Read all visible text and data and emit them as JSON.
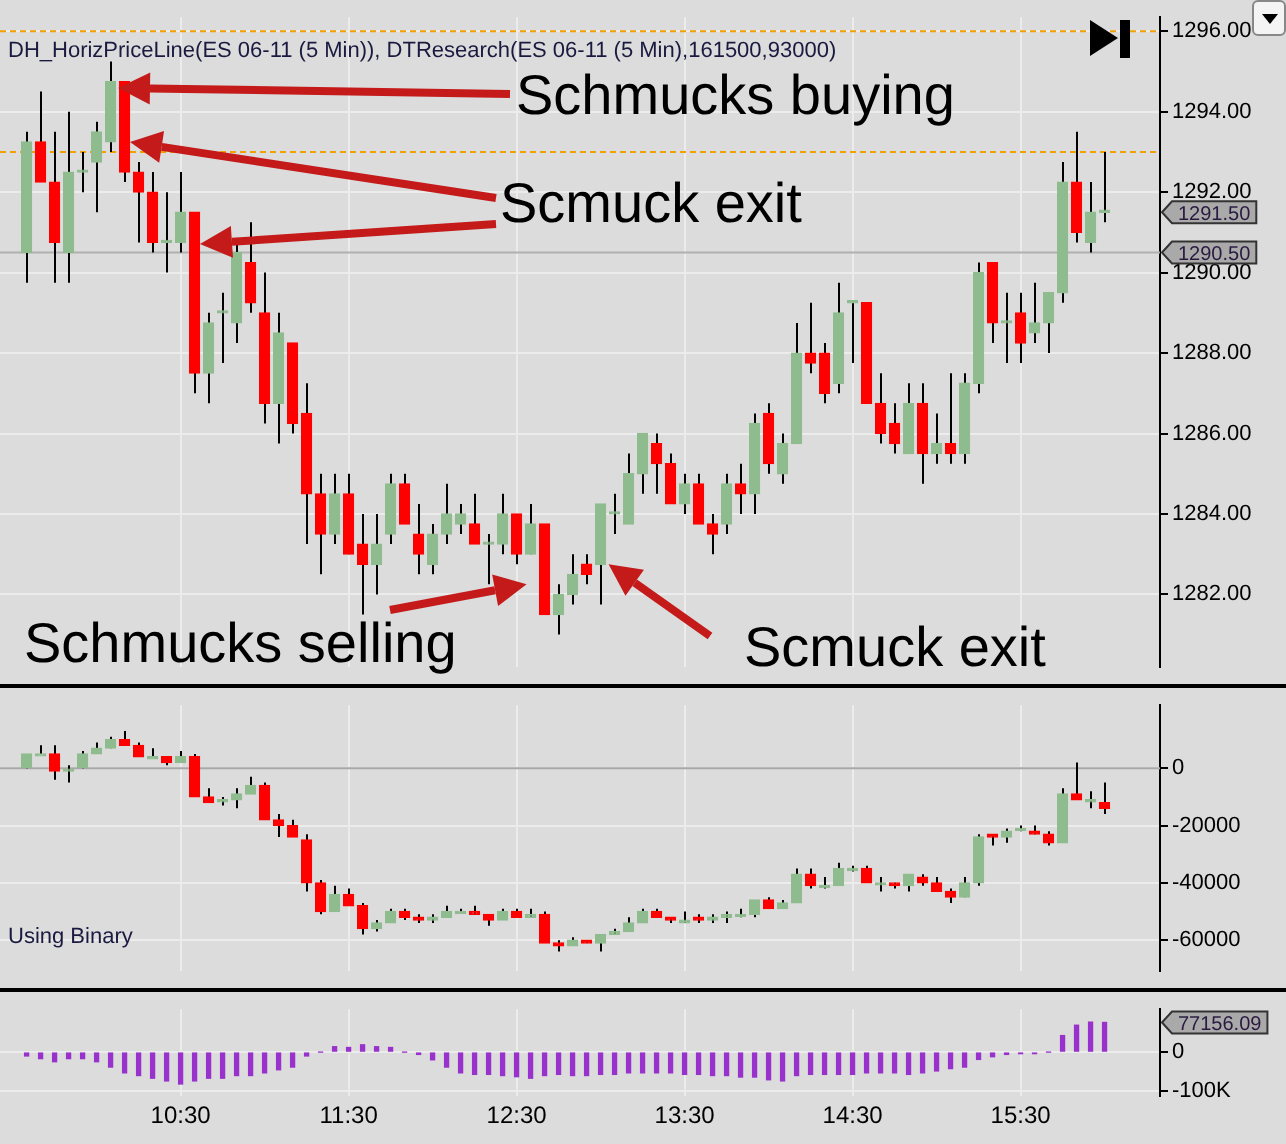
{
  "chart_data": [
    {
      "type": "candlestick",
      "title": "DH_HorizPriceLine(ES 06-11 (5 Min)), DTResearch(ES 06-11 (5 Min),161500,93000)",
      "x": [
        9.5833,
        9.6667,
        9.75,
        9.8333,
        9.9167,
        10,
        10.0833,
        10.1667,
        10.25,
        10.3333,
        10.4167,
        10.5,
        10.5833,
        10.6667,
        10.75,
        10.8333,
        10.9167,
        11,
        11.0833,
        11.1667,
        11.25,
        11.3333,
        11.4167,
        11.5,
        11.5833,
        11.6667,
        11.75,
        11.8333,
        11.9167,
        12,
        12.0833,
        12.1667,
        12.25,
        12.3333,
        12.4167,
        12.5,
        12.5833,
        12.6667,
        12.75,
        12.8333,
        12.9167,
        13,
        13.0833,
        13.1667,
        13.25,
        13.3333,
        13.4167,
        13.5,
        13.5833,
        13.6667,
        13.75,
        13.8333,
        13.9167,
        14,
        14.0833,
        14.1667,
        14.25,
        14.3333,
        14.4167,
        14.5,
        14.5833,
        14.6667,
        14.75,
        14.8333,
        14.9167,
        15,
        15.0833,
        15.1667,
        15.25,
        15.3333,
        15.4167,
        15.5,
        15.5833,
        15.6667,
        15.75,
        15.8333,
        15.9167,
        16
      ],
      "ohlc": [
        [
          1290.5,
          1293.5,
          1289.75,
          1293.25
        ],
        [
          1293.25,
          1294.5,
          1292.25,
          1292.25
        ],
        [
          1292.25,
          1293.5,
          1289.75,
          1290.75
        ],
        [
          1290.5,
          1294,
          1289.75,
          1292.5
        ],
        [
          1292.5,
          1293,
          1292,
          1292.5
        ],
        [
          1292.75,
          1293.75,
          1291.5,
          1293.5
        ],
        [
          1293.25,
          1295.25,
          1293,
          1294.75
        ],
        [
          1294.75,
          1294.75,
          1292.25,
          1292.5
        ],
        [
          1292.5,
          1292.75,
          1290.75,
          1292
        ],
        [
          1292,
          1292.5,
          1290.5,
          1290.75
        ],
        [
          1290.75,
          1292,
          1290,
          1290.75
        ],
        [
          1290.75,
          1292.5,
          1290.5,
          1291.5
        ],
        [
          1291.5,
          1291.5,
          1287,
          1287.5
        ],
        [
          1287.5,
          1289,
          1286.75,
          1288.75
        ],
        [
          1289,
          1289.5,
          1287.75,
          1289
        ],
        [
          1288.75,
          1290.75,
          1288.25,
          1290.5
        ],
        [
          1290.25,
          1291.25,
          1289,
          1289.25
        ],
        [
          1289,
          1290,
          1286.25,
          1286.75
        ],
        [
          1286.75,
          1289,
          1285.75,
          1288.5
        ],
        [
          1288.25,
          1288.25,
          1286,
          1286.25
        ],
        [
          1286.5,
          1287.25,
          1283.25,
          1284.5
        ],
        [
          1284.5,
          1285,
          1282.5,
          1283.5
        ],
        [
          1283.5,
          1285,
          1283.25,
          1284.5
        ],
        [
          1284.5,
          1285,
          1283,
          1283
        ],
        [
          1283.25,
          1284,
          1281.5,
          1282.75
        ],
        [
          1282.75,
          1284,
          1282,
          1283.25
        ],
        [
          1283.5,
          1285,
          1283.25,
          1284.75
        ],
        [
          1284.75,
          1285,
          1283.75,
          1283.75
        ],
        [
          1283.5,
          1284.25,
          1282.5,
          1283
        ],
        [
          1282.75,
          1283.75,
          1282.5,
          1283.5
        ],
        [
          1283.5,
          1284.75,
          1283.25,
          1284
        ],
        [
          1283.75,
          1284.25,
          1283.5,
          1284
        ],
        [
          1283.75,
          1284.5,
          1283.25,
          1283.25
        ],
        [
          1283.25,
          1283.5,
          1282.25,
          1283.25
        ],
        [
          1283.25,
          1284.5,
          1283,
          1284
        ],
        [
          1284,
          1284,
          1282.75,
          1283
        ],
        [
          1283,
          1284.25,
          1283,
          1283.75
        ],
        [
          1283.75,
          1283.75,
          1281.5,
          1281.5
        ],
        [
          1281.5,
          1282.25,
          1281,
          1282
        ],
        [
          1282,
          1283,
          1281.75,
          1282.5
        ],
        [
          1282.75,
          1283,
          1282.25,
          1282.5
        ],
        [
          1282.75,
          1284.25,
          1281.75,
          1284.25
        ],
        [
          1284,
          1284.5,
          1283.5,
          1284
        ],
        [
          1283.75,
          1285.5,
          1283.75,
          1285
        ],
        [
          1285,
          1286,
          1284.5,
          1286
        ],
        [
          1285.75,
          1286,
          1284.5,
          1285.25
        ],
        [
          1285.25,
          1285.5,
          1284.25,
          1284.25
        ],
        [
          1284.25,
          1285,
          1284,
          1284.75
        ],
        [
          1284.75,
          1285,
          1283.75,
          1283.75
        ],
        [
          1283.75,
          1284,
          1283,
          1283.5
        ],
        [
          1283.75,
          1285,
          1283.5,
          1284.75
        ],
        [
          1284.75,
          1285.25,
          1284,
          1284.5
        ],
        [
          1284.5,
          1286.5,
          1284,
          1286.25
        ],
        [
          1286.5,
          1286.75,
          1285,
          1285.25
        ],
        [
          1285,
          1286,
          1284.75,
          1285.75
        ],
        [
          1285.75,
          1288.75,
          1285.75,
          1288
        ],
        [
          1288,
          1289.25,
          1287.5,
          1287.75
        ],
        [
          1288,
          1288.25,
          1286.75,
          1287
        ],
        [
          1287.25,
          1289.75,
          1287,
          1289
        ],
        [
          1289.25,
          1289.25,
          1287.75,
          1289.25
        ],
        [
          1289.25,
          1289.25,
          1286.75,
          1286.75
        ],
        [
          1286.75,
          1287.5,
          1285.75,
          1286
        ],
        [
          1286.25,
          1286.75,
          1285.5,
          1285.75
        ],
        [
          1285.5,
          1287.25,
          1285.5,
          1286.75
        ],
        [
          1286.75,
          1287.25,
          1284.75,
          1285.5
        ],
        [
          1285.5,
          1286.5,
          1285.25,
          1285.75
        ],
        [
          1285.75,
          1287.5,
          1285.25,
          1285.5
        ],
        [
          1285.5,
          1287.5,
          1285.25,
          1287.25
        ],
        [
          1287.25,
          1290.25,
          1287,
          1290
        ],
        [
          1290.25,
          1290.25,
          1288.25,
          1288.75
        ],
        [
          1288.75,
          1289.5,
          1287.75,
          1288.75
        ],
        [
          1289,
          1289.5,
          1287.75,
          1288.25
        ],
        [
          1288.5,
          1289.75,
          1288.25,
          1288.75
        ],
        [
          1288.75,
          1289.5,
          1288,
          1289.5
        ],
        [
          1289.5,
          1292.75,
          1289.25,
          1292.25
        ],
        [
          1292.25,
          1293.5,
          1290.75,
          1291
        ],
        [
          1290.75,
          1292.25,
          1290.5,
          1291.5
        ],
        [
          1291.5,
          1293,
          1291.25,
          1291.5
        ]
      ],
      "colors": [
        "#8fbc8f",
        "#ff0000",
        "#ff0000",
        "#8fbc8f",
        "#8fbc8f",
        "#8fbc8f",
        "#8fbc8f",
        "#ff0000",
        "#ff0000",
        "#ff0000",
        "#8fbc8f",
        "#8fbc8f",
        "#ff0000",
        "#8fbc8f",
        "#8fbc8f",
        "#8fbc8f",
        "#ff0000",
        "#ff0000",
        "#8fbc8f",
        "#ff0000",
        "#ff0000",
        "#ff0000",
        "#8fbc8f",
        "#ff0000",
        "#ff0000",
        "#8fbc8f",
        "#8fbc8f",
        "#ff0000",
        "#ff0000",
        "#8fbc8f",
        "#8fbc8f",
        "#8fbc8f",
        "#ff0000",
        "#8fbc8f",
        "#8fbc8f",
        "#ff0000",
        "#8fbc8f",
        "#ff0000",
        "#8fbc8f",
        "#8fbc8f",
        "#ff0000",
        "#8fbc8f",
        "#8fbc8f",
        "#8fbc8f",
        "#8fbc8f",
        "#ff0000",
        "#ff0000",
        "#8fbc8f",
        "#ff0000",
        "#ff0000",
        "#8fbc8f",
        "#ff0000",
        "#8fbc8f",
        "#ff0000",
        "#8fbc8f",
        "#8fbc8f",
        "#ff0000",
        "#ff0000",
        "#8fbc8f",
        "#8fbc8f",
        "#ff0000",
        "#ff0000",
        "#ff0000",
        "#8fbc8f",
        "#ff0000",
        "#8fbc8f",
        "#ff0000",
        "#8fbc8f",
        "#8fbc8f",
        "#ff0000",
        "#8fbc8f",
        "#ff0000",
        "#8fbc8f",
        "#8fbc8f",
        "#8fbc8f",
        "#ff0000",
        "#8fbc8f",
        "#8fbc8f"
      ],
      "xlim": [
        9.425,
        16.33
      ],
      "xticks": [
        {
          "value": 10.5,
          "label": null
        },
        {
          "value": 11.5,
          "label": null
        },
        {
          "value": 12.5,
          "label": null
        },
        {
          "value": 13.5,
          "label": null
        },
        {
          "value": 14.5,
          "label": null
        },
        {
          "value": 15.5,
          "label": null
        }
      ],
      "ylim": [
        1280.2,
        1296.35
      ],
      "yticks": [
        {
          "value": 1282,
          "label": "1282.00"
        },
        {
          "value": 1284,
          "label": "1284.00"
        },
        {
          "value": 1286,
          "label": "1286.00"
        },
        {
          "value": 1288,
          "label": "1288.00"
        },
        {
          "value": 1290,
          "label": "1290.00"
        },
        {
          "value": 1292,
          "label": "1292.00"
        },
        {
          "value": 1294,
          "label": "1294.00"
        },
        {
          "value": 1296,
          "label": "1296.00"
        }
      ],
      "tick_labels": "y",
      "grid": true,
      "ref_lines": [
        {
          "axis": "y",
          "value": 1296,
          "color": "#f0a000",
          "line_style": "dashed"
        },
        {
          "axis": "y",
          "value": 1293,
          "color": "#f0a000",
          "line_style": "dashed"
        },
        {
          "axis": "y",
          "value": 1290.5,
          "label": "1290.50",
          "color": "#b0b0b0",
          "line_style": "solid"
        }
      ],
      "annotations": [
        "Schmucks buying",
        "Scmuck exit",
        {
          "text": "Schmucks selling",
          "x": 12.6667,
          "y": 1282.25
        },
        {
          "text": "Scmuck exit",
          "x": 13,
          "y": 1282.75
        },
        "1291.50"
      ]
    },
    {
      "type": "candlestick",
      "title": "Using Binary",
      "x": [
        9.5833,
        9.6667,
        9.75,
        9.8333,
        9.9167,
        10,
        10.0833,
        10.1667,
        10.25,
        10.3333,
        10.4167,
        10.5,
        10.5833,
        10.6667,
        10.75,
        10.8333,
        10.9167,
        11,
        11.0833,
        11.1667,
        11.25,
        11.3333,
        11.4167,
        11.5,
        11.5833,
        11.6667,
        11.75,
        11.8333,
        11.9167,
        12,
        12.0833,
        12.1667,
        12.25,
        12.3333,
        12.4167,
        12.5,
        12.5833,
        12.6667,
        12.75,
        12.8333,
        12.9167,
        13,
        13.0833,
        13.1667,
        13.25,
        13.3333,
        13.4167,
        13.5,
        13.5833,
        13.6667,
        13.75,
        13.8333,
        13.9167,
        14,
        14.0833,
        14.1667,
        14.25,
        14.3333,
        14.4167,
        14.5,
        14.5833,
        14.6667,
        14.75,
        14.8333,
        14.9167,
        15,
        15.0833,
        15.1667,
        15.25,
        15.3333,
        15.4167,
        15.5,
        15.5833,
        15.6667,
        15.75,
        15.8333,
        15.9167,
        16
      ],
      "ohlc": [
        [
          0,
          5000,
          0,
          5000
        ],
        [
          5000,
          8000,
          5000,
          5000
        ],
        [
          5000,
          8000,
          -4000,
          -1000
        ],
        [
          -1000,
          1000,
          -5000,
          0
        ],
        [
          0,
          6000,
          0,
          5000
        ],
        [
          5000,
          9000,
          5000,
          7000
        ],
        [
          7000,
          11000,
          7000,
          10000
        ],
        [
          10000,
          13000,
          8000,
          8000
        ],
        [
          8000,
          9000,
          4000,
          4000
        ],
        [
          4000,
          7000,
          4000,
          4000
        ],
        [
          4000,
          4000,
          1000,
          2000
        ],
        [
          2000,
          6000,
          2000,
          4000
        ],
        [
          4000,
          5000,
          -10000,
          -10000
        ],
        [
          -10000,
          -7000,
          -12000,
          -12000
        ],
        [
          -11000,
          -10000,
          -13000,
          -11000
        ],
        [
          -11000,
          -7000,
          -14000,
          -9000
        ],
        [
          -9000,
          -3000,
          -9000,
          -6000
        ],
        [
          -6000,
          -5000,
          -18000,
          -18000
        ],
        [
          -18000,
          -16000,
          -24000,
          -20000
        ],
        [
          -20000,
          -18000,
          -24000,
          -24000
        ],
        [
          -25000,
          -23000,
          -43000,
          -40000
        ],
        [
          -40000,
          -39000,
          -51000,
          -50000
        ],
        [
          -50000,
          -41000,
          -50000,
          -44000
        ],
        [
          -44000,
          -42000,
          -48000,
          -48000
        ],
        [
          -48000,
          -47000,
          -58000,
          -56000
        ],
        [
          -56000,
          -53000,
          -57000,
          -54000
        ],
        [
          -54000,
          -49000,
          -54000,
          -50000
        ],
        [
          -50000,
          -49000,
          -53000,
          -52000
        ],
        [
          -52000,
          -51000,
          -54000,
          -53000
        ],
        [
          -53000,
          -51000,
          -54000,
          -52000
        ],
        [
          -52000,
          -48000,
          -52000,
          -50000
        ],
        [
          -50000,
          -49000,
          -50000,
          -50000
        ],
        [
          -50000,
          -48000,
          -51000,
          -51000
        ],
        [
          -51000,
          -51000,
          -55000,
          -53000
        ],
        [
          -53000,
          -49000,
          -53000,
          -50000
        ],
        [
          -50000,
          -49000,
          -52000,
          -52000
        ],
        [
          -52000,
          -49000,
          -52000,
          -51000
        ],
        [
          -51000,
          -50000,
          -61000,
          -61000
        ],
        [
          -61000,
          -60000,
          -64000,
          -62000
        ],
        [
          -62000,
          -59000,
          -62000,
          -60000
        ],
        [
          -60000,
          -60000,
          -61000,
          -61000
        ],
        [
          -61000,
          -58000,
          -64000,
          -58000
        ],
        [
          -58000,
          -56000,
          -58000,
          -57000
        ],
        [
          -57000,
          -52000,
          -57000,
          -54000
        ],
        [
          -54000,
          -49000,
          -54000,
          -50000
        ],
        [
          -50000,
          -49000,
          -52000,
          -52000
        ],
        [
          -52000,
          -52000,
          -54000,
          -53000
        ],
        [
          -54000,
          -50000,
          -54000,
          -53000
        ],
        [
          -52000,
          -51000,
          -54000,
          -53000
        ],
        [
          -53000,
          -51000,
          -54000,
          -52000
        ],
        [
          -52000,
          -50000,
          -54000,
          -51000
        ],
        [
          -51000,
          -49000,
          -52000,
          -51000
        ],
        [
          -51000,
          -46000,
          -52000,
          -46000
        ],
        [
          -46000,
          -45000,
          -49000,
          -49000
        ],
        [
          -49000,
          -46000,
          -49000,
          -47000
        ],
        [
          -47000,
          -35000,
          -47000,
          -37000
        ],
        [
          -37000,
          -35000,
          -42000,
          -41000
        ],
        [
          -41000,
          -38000,
          -42000,
          -41000
        ],
        [
          -41000,
          -33000,
          -41000,
          -35000
        ],
        [
          -35000,
          -34000,
          -36000,
          -35000
        ],
        [
          -35000,
          -34000,
          -40000,
          -40000
        ],
        [
          -40000,
          -38000,
          -43000,
          -40000
        ],
        [
          -40000,
          -40000,
          -42000,
          -41000
        ],
        [
          -41000,
          -37000,
          -43000,
          -37000
        ],
        [
          -38000,
          -37000,
          -41000,
          -40000
        ],
        [
          -40000,
          -38000,
          -43000,
          -43000
        ],
        [
          -43000,
          -42000,
          -47000,
          -45000
        ],
        [
          -45000,
          -38000,
          -45000,
          -40000
        ],
        [
          -40000,
          -23000,
          -41000,
          -24000
        ],
        [
          -23000,
          -23000,
          -27000,
          -24000
        ],
        [
          -24000,
          -21000,
          -26000,
          -22000
        ],
        [
          -21000,
          -20000,
          -22000,
          -21000
        ],
        [
          -22000,
          -20000,
          -23000,
          -23000
        ],
        [
          -23000,
          -22000,
          -27000,
          -26000
        ],
        [
          -26000,
          -7000,
          -26000,
          -9000
        ],
        [
          -9000,
          2000,
          -11000,
          -11000
        ],
        [
          -11000,
          -8000,
          -14000,
          -11000
        ],
        [
          -12000,
          -5000,
          -16000,
          -14000
        ]
      ],
      "colors": [
        "#8fbc8f",
        "#8fbc8f",
        "#ff0000",
        "#8fbc8f",
        "#8fbc8f",
        "#8fbc8f",
        "#8fbc8f",
        "#ff0000",
        "#ff0000",
        "#8fbc8f",
        "#ff0000",
        "#8fbc8f",
        "#ff0000",
        "#ff0000",
        "#8fbc8f",
        "#8fbc8f",
        "#8fbc8f",
        "#ff0000",
        "#ff0000",
        "#ff0000",
        "#ff0000",
        "#ff0000",
        "#8fbc8f",
        "#ff0000",
        "#ff0000",
        "#8fbc8f",
        "#8fbc8f",
        "#ff0000",
        "#ff0000",
        "#8fbc8f",
        "#8fbc8f",
        "#8fbc8f",
        "#ff0000",
        "#ff0000",
        "#8fbc8f",
        "#ff0000",
        "#8fbc8f",
        "#ff0000",
        "#ff0000",
        "#8fbc8f",
        "#ff0000",
        "#8fbc8f",
        "#8fbc8f",
        "#8fbc8f",
        "#8fbc8f",
        "#ff0000",
        "#ff0000",
        "#8fbc8f",
        "#ff0000",
        "#8fbc8f",
        "#8fbc8f",
        "#8fbc8f",
        "#8fbc8f",
        "#ff0000",
        "#8fbc8f",
        "#8fbc8f",
        "#ff0000",
        "#8fbc8f",
        "#8fbc8f",
        "#8fbc8f",
        "#ff0000",
        "#8fbc8f",
        "#ff0000",
        "#8fbc8f",
        "#ff0000",
        "#ff0000",
        "#ff0000",
        "#8fbc8f",
        "#8fbc8f",
        "#ff0000",
        "#8fbc8f",
        "#8fbc8f",
        "#ff0000",
        "#ff0000",
        "#8fbc8f",
        "#ff0000",
        "#8fbc8f",
        "#ff0000"
      ],
      "xlim": [
        9.425,
        16.33
      ],
      "xticks": [
        {
          "value": 10.5,
          "label": null
        },
        {
          "value": 11.5,
          "label": null
        },
        {
          "value": 12.5,
          "label": null
        },
        {
          "value": 13.5,
          "label": null
        },
        {
          "value": 14.5,
          "label": null
        },
        {
          "value": 15.5,
          "label": null
        }
      ],
      "ylim": [
        -70700,
        22000
      ],
      "yticks": [
        0,
        -20000,
        -40000,
        -60000
      ],
      "tick_labels": "y",
      "grid": true,
      "ref_lines": [
        {
          "axis": "y",
          "value": 0,
          "color": "#a8a8a8",
          "line_style": "solid"
        }
      ]
    },
    {
      "type": "bar",
      "x": [
        9.5833,
        9.6667,
        9.75,
        9.8333,
        9.9167,
        10,
        10.0833,
        10.1667,
        10.25,
        10.3333,
        10.4167,
        10.5,
        10.5833,
        10.6667,
        10.75,
        10.8333,
        10.9167,
        11,
        11.0833,
        11.1667,
        11.25,
        11.3333,
        11.4167,
        11.5,
        11.5833,
        11.6667,
        11.75,
        11.8333,
        11.9167,
        12,
        12.0833,
        12.1667,
        12.25,
        12.3333,
        12.4167,
        12.5,
        12.5833,
        12.6667,
        12.75,
        12.8333,
        12.9167,
        13,
        13.0833,
        13.1667,
        13.25,
        13.3333,
        13.4167,
        13.5,
        13.5833,
        13.6667,
        13.75,
        13.8333,
        13.9167,
        14,
        14.0833,
        14.1667,
        14.25,
        14.3333,
        14.4167,
        14.5,
        14.5833,
        14.6667,
        14.75,
        14.8333,
        14.9167,
        15,
        15.0833,
        15.1667,
        15.25,
        15.3333,
        15.4167,
        15.5,
        15.5833,
        15.6667,
        15.75,
        15.8333,
        15.9167,
        16
      ],
      "values": [
        -10000,
        -17000,
        -25000,
        -17000,
        -17000,
        -25000,
        -39000,
        -54000,
        -61000,
        -68000,
        -75000,
        -83000,
        -75000,
        -68000,
        -68000,
        -61000,
        -61000,
        -54000,
        -46000,
        -39000,
        -10000,
        0,
        14000,
        12000,
        19000,
        14000,
        12000,
        0,
        -6000,
        -20000,
        -39000,
        -54000,
        -58000,
        -58000,
        -61000,
        -64000,
        -68000,
        -61000,
        -58000,
        -61000,
        -61000,
        -58000,
        -58000,
        -54000,
        -54000,
        -54000,
        -54000,
        -58000,
        -58000,
        -61000,
        -61000,
        -65000,
        -65000,
        -72000,
        -75000,
        -61000,
        -58000,
        -58000,
        -58000,
        -58000,
        -54000,
        -54000,
        -54000,
        -58000,
        -54000,
        -49000,
        -43000,
        -39000,
        -19000,
        -12000,
        -6000,
        -4000,
        -4000,
        0,
        43000,
        70000,
        78000,
        77156.09
      ],
      "color": "#9932cc",
      "xlim": [
        9.425,
        16.33
      ],
      "xticks": [
        {
          "value": 10.5,
          "label": "10:30"
        },
        {
          "value": 11.5,
          "label": "11:30"
        },
        {
          "value": 12.5,
          "label": "12:30"
        },
        {
          "value": 13.5,
          "label": "13:30"
        },
        {
          "value": 14.5,
          "label": "14:30"
        },
        {
          "value": 15.5,
          "label": "15:30"
        }
      ],
      "ylim": [
        -114300,
        111700
      ],
      "yticks": [
        0,
        {
          "value": -100000,
          "label": "-100K"
        }
      ],
      "grid": true,
      "annotations": [
        "77156.09"
      ]
    }
  ]
}
